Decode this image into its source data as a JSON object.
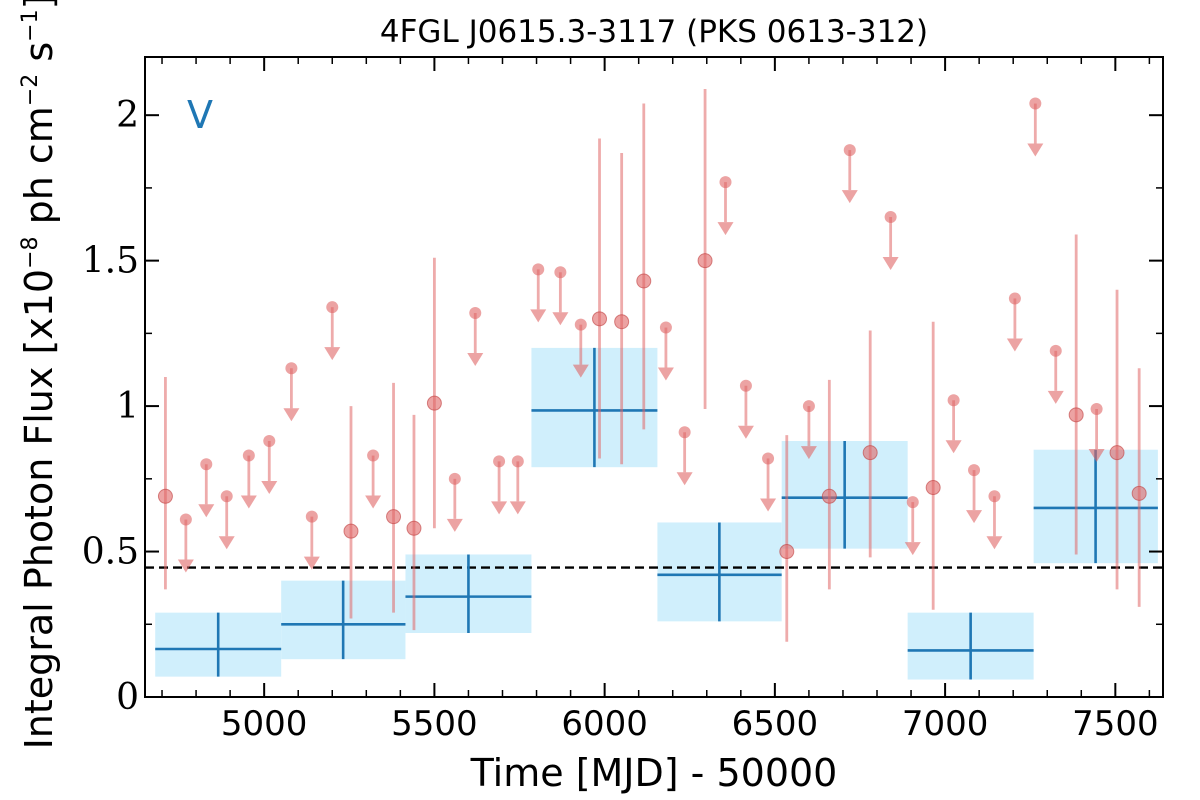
{
  "chart_data": {
    "type": "scatter",
    "title": "4FGL J0615.3-3117 (PKS 0613-312)",
    "xlabel": "Time [MJD] - 50000",
    "ylabel": {
      "prefix": "Integral Photon Flux [x10",
      "exp1": "−8",
      "mid": " ph cm",
      "exp2": "−2",
      "mid2": " s",
      "exp3": "−1",
      "suffix": "]"
    },
    "annotation": "V",
    "xlim": [
      4650,
      7640
    ],
    "ylim": [
      0,
      2.2
    ],
    "xticks": [
      {
        "value": 5000,
        "label": "5000"
      },
      {
        "value": 5500,
        "label": "5500"
      },
      {
        "value": 6000,
        "label": "6000"
      },
      {
        "value": 6500,
        "label": "6500"
      },
      {
        "value": 7000,
        "label": "7000"
      },
      {
        "value": 7500,
        "label": "7500"
      }
    ],
    "yticks": [
      {
        "value": 0,
        "label": "0"
      },
      {
        "value": 0.5,
        "label": "0.5"
      },
      {
        "value": 1,
        "label": "1"
      },
      {
        "value": 1.5,
        "label": "1.5"
      },
      {
        "value": 2,
        "label": "2"
      }
    ],
    "x_minor_step": 100,
    "y_minor_step": 0.25,
    "reference_line": 0.445,
    "colors": {
      "points": "#e06666",
      "bins": "#1f77b4",
      "bin_fill": "#cdeefc",
      "reference": "#000000"
    },
    "detections": [
      {
        "x": 4710,
        "y": 0.69,
        "lo": 0.37,
        "hi": 1.1
      },
      {
        "x": 5255,
        "y": 0.57,
        "lo": 0.27,
        "hi": 1.0
      },
      {
        "x": 5380,
        "y": 0.62,
        "lo": 0.29,
        "hi": 1.08
      },
      {
        "x": 5440,
        "y": 0.58,
        "lo": 0.23,
        "hi": 0.97
      },
      {
        "x": 5500,
        "y": 1.01,
        "lo": 0.58,
        "hi": 1.51
      },
      {
        "x": 5985,
        "y": 1.3,
        "lo": 0.82,
        "hi": 1.92
      },
      {
        "x": 6050,
        "y": 1.29,
        "lo": 0.8,
        "hi": 1.87
      },
      {
        "x": 6115,
        "y": 1.43,
        "lo": 0.92,
        "hi": 2.04
      },
      {
        "x": 6295,
        "y": 1.5,
        "lo": 0.99,
        "hi": 2.09
      },
      {
        "x": 6535,
        "y": 0.5,
        "lo": 0.19,
        "hi": 0.9
      },
      {
        "x": 6660,
        "y": 0.69,
        "lo": 0.37,
        "hi": 1.09
      },
      {
        "x": 6780,
        "y": 0.84,
        "lo": 0.48,
        "hi": 1.26
      },
      {
        "x": 6965,
        "y": 0.72,
        "lo": 0.3,
        "hi": 1.29
      },
      {
        "x": 7385,
        "y": 0.97,
        "lo": 0.49,
        "hi": 1.59
      },
      {
        "x": 7505,
        "y": 0.84,
        "lo": 0.37,
        "hi": 1.4
      },
      {
        "x": 7570,
        "y": 0.7,
        "lo": 0.31,
        "hi": 1.13
      }
    ],
    "upper_limits": [
      {
        "x": 4770,
        "y": 0.61
      },
      {
        "x": 4830,
        "y": 0.8
      },
      {
        "x": 4890,
        "y": 0.69
      },
      {
        "x": 4955,
        "y": 0.83
      },
      {
        "x": 5015,
        "y": 0.88
      },
      {
        "x": 5080,
        "y": 1.13
      },
      {
        "x": 5140,
        "y": 0.62
      },
      {
        "x": 5200,
        "y": 1.34
      },
      {
        "x": 5320,
        "y": 0.83
      },
      {
        "x": 5560,
        "y": 0.75
      },
      {
        "x": 5620,
        "y": 1.32
      },
      {
        "x": 5690,
        "y": 0.81
      },
      {
        "x": 5745,
        "y": 0.81
      },
      {
        "x": 5805,
        "y": 1.47
      },
      {
        "x": 5870,
        "y": 1.46
      },
      {
        "x": 5930,
        "y": 1.28
      },
      {
        "x": 6180,
        "y": 1.27
      },
      {
        "x": 6235,
        "y": 0.91
      },
      {
        "x": 6355,
        "y": 1.77
      },
      {
        "x": 6415,
        "y": 1.07
      },
      {
        "x": 6480,
        "y": 0.82
      },
      {
        "x": 6600,
        "y": 1.0
      },
      {
        "x": 6720,
        "y": 1.88
      },
      {
        "x": 6840,
        "y": 1.65
      },
      {
        "x": 6905,
        "y": 0.67
      },
      {
        "x": 7025,
        "y": 1.02
      },
      {
        "x": 7085,
        "y": 0.78
      },
      {
        "x": 7145,
        "y": 0.69
      },
      {
        "x": 7205,
        "y": 1.37
      },
      {
        "x": 7265,
        "y": 2.04
      },
      {
        "x": 7325,
        "y": 1.19
      },
      {
        "x": 7445,
        "y": 0.99
      }
    ],
    "bins": [
      {
        "x0": 4680,
        "x1": 5050,
        "xc": 4865,
        "y": 0.165,
        "lo": 0.07,
        "hi": 0.29
      },
      {
        "x0": 5050,
        "x1": 5415,
        "xc": 5232,
        "y": 0.25,
        "lo": 0.13,
        "hi": 0.4
      },
      {
        "x0": 5415,
        "x1": 5785,
        "xc": 5600,
        "y": 0.345,
        "lo": 0.22,
        "hi": 0.49
      },
      {
        "x0": 5785,
        "x1": 6155,
        "xc": 5970,
        "y": 0.985,
        "lo": 0.79,
        "hi": 1.2
      },
      {
        "x0": 6155,
        "x1": 6520,
        "xc": 6337,
        "y": 0.42,
        "lo": 0.26,
        "hi": 0.6
      },
      {
        "x0": 6520,
        "x1": 6890,
        "xc": 6705,
        "y": 0.685,
        "lo": 0.51,
        "hi": 0.88
      },
      {
        "x0": 6890,
        "x1": 7260,
        "xc": 7075,
        "y": 0.16,
        "lo": 0.06,
        "hi": 0.29
      },
      {
        "x0": 7260,
        "x1": 7625,
        "xc": 7442,
        "y": 0.65,
        "lo": 0.46,
        "hi": 0.85
      }
    ]
  }
}
